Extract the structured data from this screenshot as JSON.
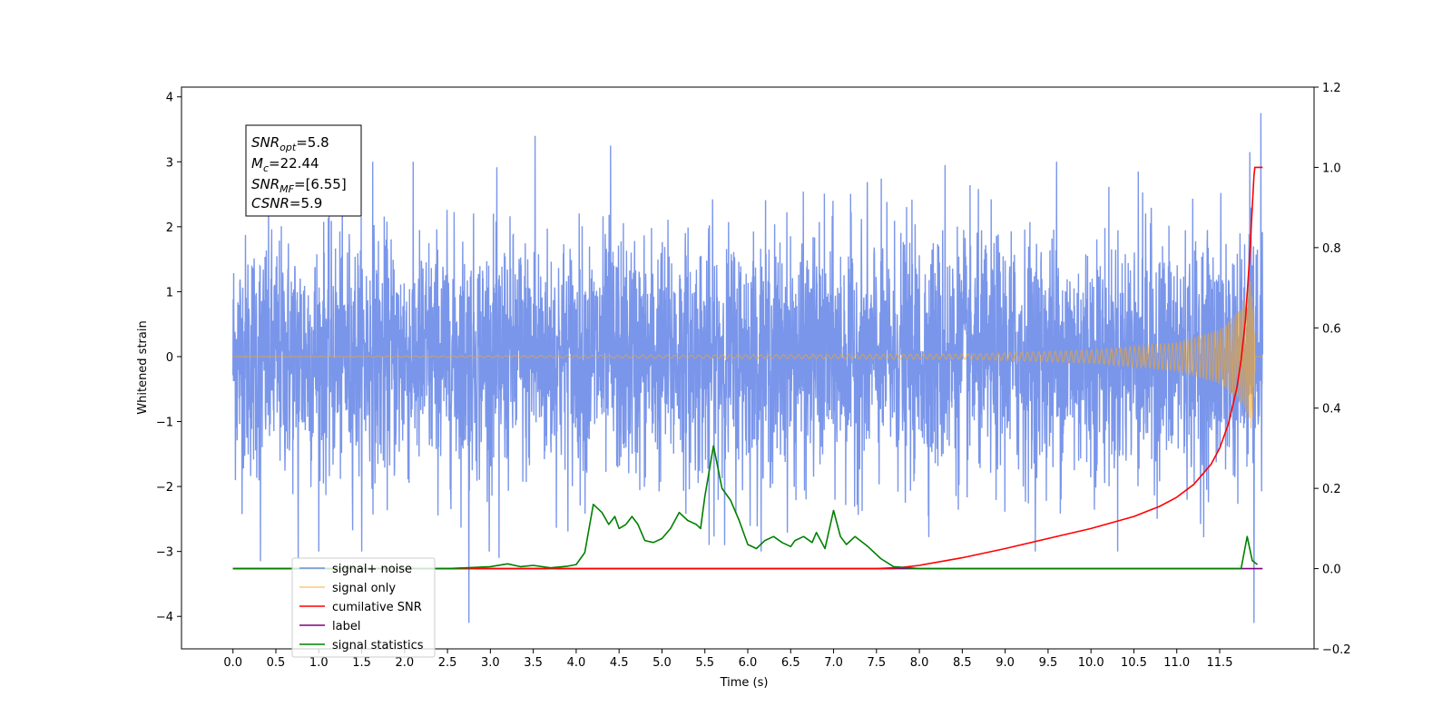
{
  "chart_data": {
    "type": "line",
    "title": "",
    "xlabel": "Time (s)",
    "ylabel": "Whitened strain",
    "xlim": [
      -0.6,
      12.6
    ],
    "ylim": [
      -4.5,
      4.15
    ],
    "y2lim": [
      -0.2,
      1.2
    ],
    "x_ticks": [
      0.0,
      0.5,
      1.0,
      1.5,
      2.0,
      2.5,
      3.0,
      3.5,
      4.0,
      4.5,
      5.0,
      5.5,
      6.0,
      6.5,
      7.0,
      7.5,
      8.0,
      8.5,
      9.0,
      9.5,
      10.0,
      10.5,
      11.0,
      11.5
    ],
    "x_tick_labels": [
      "0.0",
      "0.5",
      "1.0",
      "1.5",
      "2.0",
      "2.5",
      "3.0",
      "3.5",
      "4.0",
      "4.5",
      "5.0",
      "5.5",
      "6.0",
      "6.5",
      "7.0",
      "7.5",
      "8.0",
      "8.5",
      "9.0",
      "9.5",
      "10.0",
      "10.5",
      "11.0",
      "11.5"
    ],
    "y_ticks": [
      4,
      3,
      2,
      1,
      0,
      -1,
      -2,
      -3,
      -4
    ],
    "y_tick_labels": [
      "4",
      "3",
      "2",
      "1",
      "0",
      "−1",
      "−2",
      "−3",
      "−4"
    ],
    "y2_ticks": [
      1.2,
      1.0,
      0.8,
      0.6,
      0.4,
      0.2,
      0.0,
      -0.2
    ],
    "y2_tick_labels": [
      "1.2",
      "1.0",
      "0.8",
      "0.6",
      "0.4",
      "0.2",
      "0.0",
      "−0.2"
    ],
    "grid": false,
    "legend_position": "lower-left",
    "annotation": {
      "snr_opt": {
        "main": "SNR",
        "sub": "opt",
        "value": "=5.8"
      },
      "mc": {
        "main": "M",
        "sub": "c",
        "value": "=22.44"
      },
      "snr_mf": {
        "main": "SNR",
        "sub": "MF",
        "value": "=[6.55]"
      },
      "csnr": {
        "main": "CSNR",
        "sub": "",
        "value": "=5.9"
      }
    },
    "series": [
      {
        "name": "signal+ noise",
        "axis": "left",
        "color": "#4169e1",
        "style": "noise-band",
        "x_range": [
          0.0,
          12.0
        ],
        "typical_amplitude": 2.2,
        "peaks": [
          {
            "x": 0.32,
            "y": -3.15
          },
          {
            "x": 0.76,
            "y": -3.1
          },
          {
            "x": 1.63,
            "y": 3.0
          },
          {
            "x": 2.75,
            "y": -4.1
          },
          {
            "x": 3.1,
            "y": -3.1
          },
          {
            "x": 3.52,
            "y": 3.4
          },
          {
            "x": 4.4,
            "y": 3.25
          },
          {
            "x": 5.55,
            "y": -2.9
          },
          {
            "x": 8.3,
            "y": 2.95
          },
          {
            "x": 9.6,
            "y": 3.0
          },
          {
            "x": 10.55,
            "y": 2.85
          },
          {
            "x": 11.85,
            "y": 3.15
          },
          {
            "x": 11.9,
            "y": -4.1
          },
          {
            "x": 11.98,
            "y": 3.75
          }
        ]
      },
      {
        "name": "signal only",
        "axis": "left",
        "color": "#f5a623",
        "style": "chirp",
        "x_range": [
          0.0,
          12.0
        ],
        "envelope": [
          {
            "x": 0.0,
            "y": 0.0
          },
          {
            "x": 8.5,
            "y": 0.04
          },
          {
            "x": 10.0,
            "y": 0.1
          },
          {
            "x": 11.0,
            "y": 0.22
          },
          {
            "x": 11.5,
            "y": 0.42
          },
          {
            "x": 11.75,
            "y": 0.75
          },
          {
            "x": 11.88,
            "y": 1.25
          },
          {
            "x": 11.92,
            "y": 0.0
          }
        ]
      },
      {
        "name": "cumilative SNR",
        "axis": "right",
        "color": "#ff0000",
        "x": [
          0.0,
          7.5,
          7.8,
          8.0,
          8.5,
          9.0,
          9.5,
          10.0,
          10.5,
          10.8,
          11.0,
          11.2,
          11.4,
          11.5,
          11.6,
          11.7,
          11.75,
          11.8,
          11.85,
          11.88,
          11.9,
          11.91,
          12.0
        ],
        "values": [
          0.0,
          0.0,
          0.003,
          0.008,
          0.027,
          0.05,
          0.075,
          0.1,
          0.13,
          0.155,
          0.178,
          0.21,
          0.26,
          0.3,
          0.36,
          0.45,
          0.52,
          0.62,
          0.78,
          0.9,
          0.98,
          1.0,
          1.0
        ]
      },
      {
        "name": "label",
        "axis": "right",
        "color": "#800080",
        "x": [
          0.0,
          11.9,
          12.0
        ],
        "values": [
          0.0,
          0.0,
          0.0
        ]
      },
      {
        "name": "signal statistics",
        "axis": "right",
        "color": "#008000",
        "x": [
          0.0,
          2.5,
          3.0,
          3.2,
          3.35,
          3.5,
          3.7,
          3.9,
          4.0,
          4.1,
          4.2,
          4.3,
          4.38,
          4.45,
          4.5,
          4.58,
          4.65,
          4.72,
          4.8,
          4.9,
          5.0,
          5.1,
          5.2,
          5.3,
          5.4,
          5.45,
          5.5,
          5.6,
          5.7,
          5.8,
          5.9,
          6.0,
          6.1,
          6.2,
          6.3,
          6.4,
          6.5,
          6.55,
          6.65,
          6.75,
          6.8,
          6.9,
          7.0,
          7.08,
          7.15,
          7.25,
          7.4,
          7.55,
          7.7,
          8.0,
          11.75,
          11.82,
          11.88,
          11.94
        ],
        "values": [
          0.0,
          0.0,
          0.005,
          0.012,
          0.005,
          0.008,
          0.002,
          0.006,
          0.01,
          0.04,
          0.16,
          0.14,
          0.11,
          0.13,
          0.1,
          0.11,
          0.13,
          0.11,
          0.07,
          0.065,
          0.075,
          0.1,
          0.14,
          0.12,
          0.11,
          0.1,
          0.18,
          0.306,
          0.2,
          0.17,
          0.12,
          0.06,
          0.05,
          0.07,
          0.08,
          0.065,
          0.055,
          0.07,
          0.08,
          0.065,
          0.09,
          0.05,
          0.145,
          0.08,
          0.06,
          0.08,
          0.055,
          0.025,
          0.005,
          0.0,
          0.0,
          0.08,
          0.02,
          0.01
        ]
      }
    ]
  }
}
